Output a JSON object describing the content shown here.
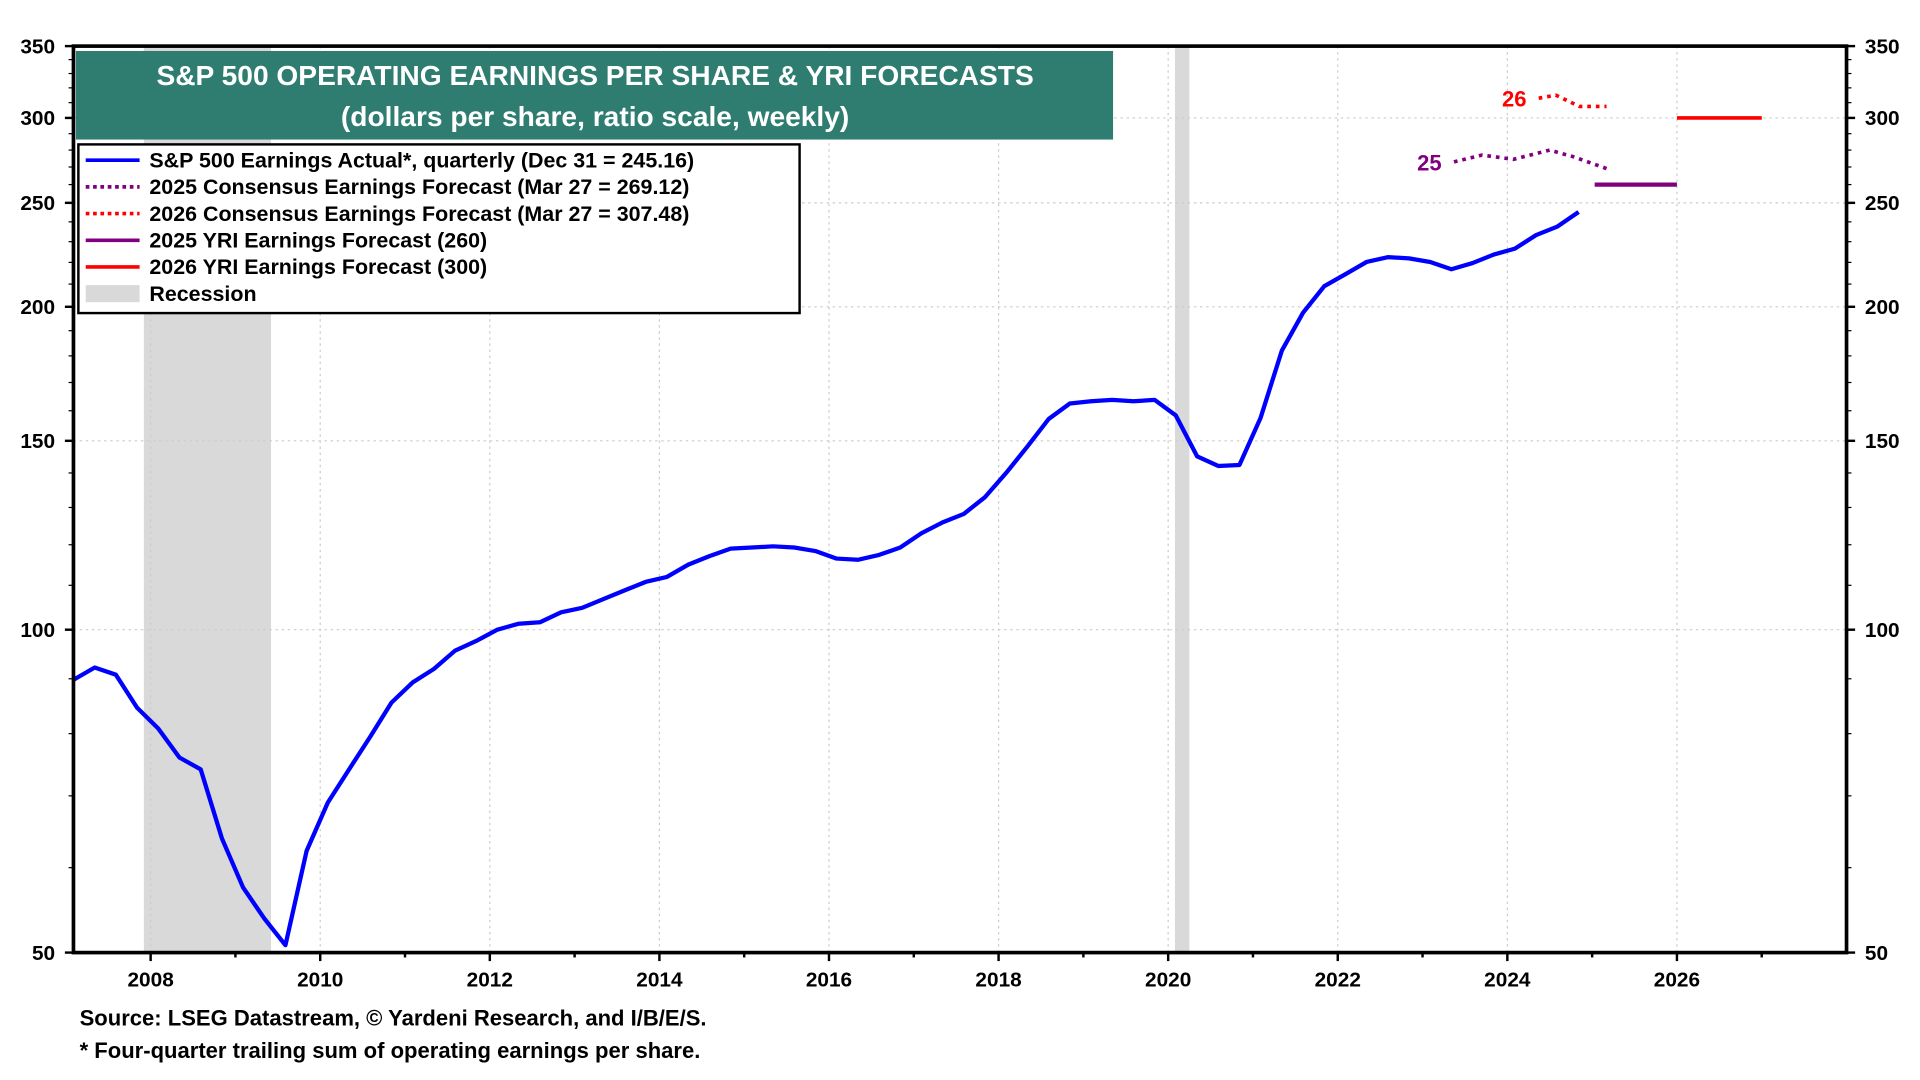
{
  "chart_data": {
    "type": "line",
    "title": "S&P 500 OPERATING EARNINGS PER SHARE & YRI FORECASTS",
    "subtitle": "(dollars per share, ratio scale, weekly)",
    "xlabel": "",
    "ylabel": "",
    "yscale": "log",
    "xlim": [
      2007.09,
      2028.0
    ],
    "ylim": [
      50,
      350
    ],
    "yticks": [
      50,
      100,
      150,
      200,
      250,
      300,
      350
    ],
    "xticks": [
      2008,
      2010,
      2012,
      2014,
      2016,
      2018,
      2020,
      2022,
      2024,
      2026
    ],
    "grid": true,
    "legend_position": "top-left",
    "colors": {
      "actual": "#0000ff",
      "consensus2025": "#800080",
      "consensus2026": "#ff0000",
      "yri2025": "#800080",
      "yri2026": "#ff0000",
      "recession": "#d9d9d9",
      "title_bg": "#2e7d70"
    },
    "legend": [
      {
        "label": "S&P 500 Earnings Actual*, quarterly (Dec 31 = 245.16)",
        "style": "solid",
        "color": "#0000ff"
      },
      {
        "label": "2025 Consensus Earnings Forecast (Mar 27 = 269.12)",
        "style": "dotted",
        "color": "#800080"
      },
      {
        "label": "2026 Consensus Earnings Forecast (Mar 27 = 307.48)",
        "style": "dotted",
        "color": "#ff0000"
      },
      {
        "label": "2025 YRI Earnings Forecast (260)",
        "style": "solid",
        "color": "#800080"
      },
      {
        "label": "2026 YRI Earnings Forecast (300)",
        "style": "solid",
        "color": "#ff0000"
      },
      {
        "label": "Recession",
        "style": "box",
        "color": "#d9d9d9"
      }
    ],
    "recessions": [
      [
        2007.92,
        2009.42
      ],
      [
        2020.08,
        2020.25
      ]
    ],
    "series": [
      {
        "name": "S&P 500 Earnings Actual",
        "x_start": 2007.09,
        "x_step": 0.25,
        "values": [
          89.8,
          92.2,
          90.8,
          84.6,
          80.9,
          76.0,
          74.1,
          63.9,
          57.5,
          53.8,
          50.8,
          62.2,
          69.0,
          74.1,
          79.5,
          85.5,
          89.3,
          91.9,
          95.6,
          97.6,
          100.0,
          101.3,
          101.6,
          103.8,
          104.8,
          106.8,
          108.8,
          110.8,
          112.0,
          115.0,
          117.1,
          119.0,
          119.3,
          119.6,
          119.3,
          118.4,
          116.5,
          116.2,
          117.4,
          119.3,
          123.0,
          125.9,
          128.2,
          132.9,
          140.0,
          148.2,
          157.2,
          162.5,
          163.3,
          163.8,
          163.3,
          163.8,
          158.4,
          145.1,
          142.1,
          142.4,
          157.6,
          182.0,
          197.4,
          209.0,
          214.5,
          220.2,
          222.5,
          221.9,
          220.2,
          216.8,
          219.7,
          223.7,
          226.6,
          233.3,
          237.6,
          245.16
        ]
      },
      {
        "name": "2025 Consensus",
        "x": [
          2023.37,
          2023.7,
          2024.07,
          2024.5,
          2024.78,
          2025.17
        ],
        "values": [
          273,
          277,
          274.5,
          280,
          276,
          269.12
        ],
        "label": "25"
      },
      {
        "name": "2026 Consensus",
        "x": [
          2024.37,
          2024.57,
          2024.85,
          2025.17
        ],
        "values": [
          313,
          315,
          307.5,
          307.48
        ],
        "label": "26"
      },
      {
        "name": "2025 YRI",
        "x": [
          2025.03,
          2026.0
        ],
        "values": [
          260,
          260
        ]
      },
      {
        "name": "2026 YRI",
        "x": [
          2026.0,
          2027.0
        ],
        "values": [
          300,
          300
        ]
      }
    ]
  },
  "footer": {
    "source": "Source: LSEG Datastream, © Yardeni Research, and I/B/E/S.",
    "note": "* Four-quarter trailing sum of operating earnings per share."
  }
}
